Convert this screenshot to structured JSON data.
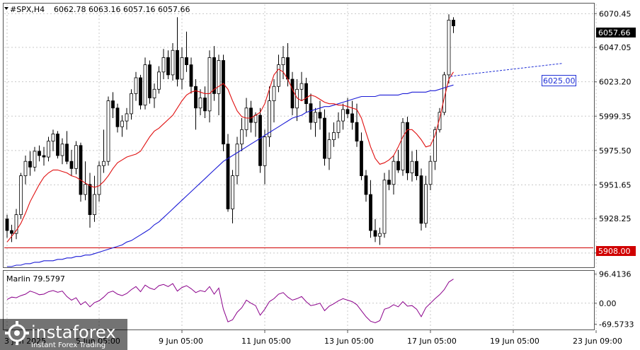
{
  "header": {
    "symbol_label": "#SPX,H4",
    "ohlc_text": "6062.78 6063.16 6057.16 6057.66"
  },
  "oscillator": {
    "label": "Marlin 79.5797",
    "ticks": [
      "96.4136",
      "0.00",
      "-69.5733"
    ],
    "range": [
      -85,
      105
    ],
    "tick_values": [
      96.4136,
      0,
      -69.5733
    ],
    "color": "#8b008b"
  },
  "price_labels": {
    "current": "6057.66",
    "support": "5908.00",
    "target": "6025.00"
  },
  "watermark": {
    "brand": "instaforex",
    "tagline": "Instant Forex Trading"
  },
  "colors": {
    "ma_fast": "#e01010",
    "ma_slow": "#1a1ad6",
    "support_line": "#d00000",
    "target_label": "#1f2fd6",
    "candle_bull": "#ffffff",
    "candle_bear": "#000000"
  },
  "chart_data": {
    "type": "candlestick",
    "y_ticks": [
      "6070.45",
      "6047.05",
      "6023.20",
      "5999.35",
      "5975.50",
      "5951.65",
      "5928.25",
      "5904.40"
    ],
    "y_tick_values": [
      6070.45,
      6047.05,
      6023.2,
      5999.35,
      5975.5,
      5951.65,
      5928.25,
      5904.4
    ],
    "ylim": [
      5895,
      6077
    ],
    "x_labels": [
      "3 Jun 2025",
      "5 Jun 05:00",
      "9 Jun 05:00",
      "11 Jun 05:00",
      "13 Jun 05:00",
      "17 Jun 05:00",
      "19 Jun 05:00",
      "23 Jun 09:00"
    ],
    "x_label_index": [
      0,
      20,
      38,
      56,
      74,
      92,
      110,
      128
    ],
    "horizontal_levels": [
      5908.0
    ],
    "projection_target": 6025.0,
    "candles": [
      [
        5928,
        5931,
        5915,
        5920
      ],
      [
        5920,
        5924,
        5912,
        5918
      ],
      [
        5918,
        5935,
        5914,
        5931
      ],
      [
        5931,
        5960,
        5928,
        5958
      ],
      [
        5958,
        5972,
        5952,
        5968
      ],
      [
        5968,
        5975,
        5958,
        5964
      ],
      [
        5964,
        5978,
        5961,
        5975
      ],
      [
        5975,
        5979,
        5968,
        5972
      ],
      [
        5972,
        5978,
        5965,
        5971
      ],
      [
        5971,
        5985,
        5968,
        5982
      ],
      [
        5982,
        5990,
        5975,
        5987
      ],
      [
        5987,
        5989,
        5970,
        5972
      ],
      [
        5972,
        5984,
        5966,
        5980
      ],
      [
        5980,
        5989,
        5966,
        5968
      ],
      [
        5968,
        5976,
        5958,
        5963
      ],
      [
        5963,
        5982,
        5959,
        5979
      ],
      [
        5979,
        5981,
        5940,
        5945
      ],
      [
        5945,
        5968,
        5941,
        5952
      ],
      [
        5952,
        5960,
        5922,
        5931
      ],
      [
        5931,
        5958,
        5926,
        5945
      ],
      [
        5945,
        5968,
        5940,
        5965
      ],
      [
        5965,
        5990,
        5960,
        5968
      ],
      [
        5968,
        6013,
        5965,
        6010
      ],
      [
        6010,
        6016,
        5998,
        6005
      ],
      [
        6005,
        6008,
        5988,
        5992
      ],
      [
        5992,
        6000,
        5985,
        5996
      ],
      [
        5996,
        6005,
        5990,
        6001
      ],
      [
        6001,
        6018,
        5997,
        6015
      ],
      [
        6015,
        6030,
        6010,
        6026
      ],
      [
        6026,
        6028,
        6004,
        6007
      ],
      [
        6007,
        6040,
        6004,
        6035
      ],
      [
        6035,
        6038,
        6008,
        6012
      ],
      [
        6012,
        6022,
        6005,
        6018
      ],
      [
        6018,
        6034,
        6015,
        6030
      ],
      [
        6030,
        6046,
        6025,
        6040
      ],
      [
        6040,
        6045,
        6025,
        6028
      ],
      [
        6028,
        6050,
        6024,
        6045
      ],
      [
        6045,
        6068,
        6020,
        6025
      ],
      [
        6025,
        6047,
        6018,
        6040
      ],
      [
        6040,
        6058,
        6030,
        6035
      ],
      [
        6035,
        6040,
        6015,
        6020
      ],
      [
        6020,
        6025,
        5990,
        6005
      ],
      [
        6005,
        6018,
        6000,
        6012
      ],
      [
        6012,
        6020,
        5998,
        6003
      ],
      [
        6003,
        6045,
        5995,
        6040
      ],
      [
        6040,
        6048,
        6010,
        6015
      ],
      [
        6015,
        6042,
        6000,
        6038
      ],
      [
        6038,
        6042,
        5975,
        5980
      ],
      [
        5980,
        5987,
        5933,
        5935
      ],
      [
        5935,
        5962,
        5925,
        5958
      ],
      [
        5958,
        5985,
        5952,
        5980
      ],
      [
        5980,
        5998,
        5975,
        5990
      ],
      [
        5990,
        6012,
        5985,
        6005
      ],
      [
        6005,
        6010,
        5988,
        5995
      ],
      [
        5995,
        6002,
        5985,
        6000
      ],
      [
        6000,
        6005,
        5960,
        5965
      ],
      [
        5965,
        5990,
        5952,
        5985
      ],
      [
        5985,
        6020,
        5978,
        6010
      ],
      [
        6010,
        6025,
        5995,
        6020
      ],
      [
        6020,
        6042,
        6016,
        6035
      ],
      [
        6035,
        6048,
        6025,
        6040
      ],
      [
        6040,
        6050,
        6020,
        6025
      ],
      [
        6025,
        6030,
        6000,
        6005
      ],
      [
        6005,
        6025,
        5996,
        6018
      ],
      [
        6018,
        6030,
        6010,
        6022
      ],
      [
        6022,
        6026,
        6002,
        6008
      ],
      [
        6008,
        6015,
        5990,
        5995
      ],
      [
        5995,
        6005,
        5985,
        6002
      ],
      [
        6002,
        6010,
        5990,
        5998
      ],
      [
        5998,
        6004,
        5965,
        5970
      ],
      [
        5970,
        5988,
        5962,
        5983
      ],
      [
        5983,
        5995,
        5978,
        5988
      ],
      [
        5988,
        6002,
        5984,
        5996
      ],
      [
        5996,
        6008,
        5990,
        6004
      ],
      [
        6004,
        6012,
        5998,
        6001
      ],
      [
        6001,
        6010,
        5990,
        5995
      ],
      [
        5995,
        6008,
        5978,
        5982
      ],
      [
        5982,
        5988,
        5955,
        5958
      ],
      [
        5958,
        5962,
        5940,
        5945
      ],
      [
        5945,
        5955,
        5915,
        5920
      ],
      [
        5920,
        5928,
        5912,
        5916
      ],
      [
        5916,
        5922,
        5910,
        5918
      ],
      [
        5918,
        5960,
        5915,
        5955
      ],
      [
        5955,
        5962,
        5948,
        5952
      ],
      [
        5952,
        5972,
        5945,
        5968
      ],
      [
        5968,
        5976,
        5960,
        5962
      ],
      [
        5962,
        5998,
        5958,
        5995
      ],
      [
        5995,
        5999,
        5955,
        5960
      ],
      [
        5960,
        5975,
        5954,
        5968
      ],
      [
        5968,
        5976,
        5955,
        5958
      ],
      [
        5958,
        5963,
        5920,
        5925
      ],
      [
        5925,
        5958,
        5922,
        5952
      ],
      [
        5952,
        5972,
        5948,
        5968
      ],
      [
        5968,
        5992,
        5962,
        5990
      ],
      [
        5990,
        6005,
        5988,
        6002
      ],
      [
        6002,
        6030,
        6000,
        6028
      ],
      [
        6028,
        6070,
        6022,
        6066
      ],
      [
        6066,
        6068,
        6057,
        6062
      ]
    ],
    "ma_fast_values": [
      5912,
      5916,
      5920,
      5925,
      5932,
      5940,
      5946,
      5952,
      5957,
      5960,
      5962,
      5962,
      5961,
      5960,
      5958,
      5957,
      5955,
      5953,
      5951,
      5950,
      5951,
      5954,
      5958,
      5963,
      5967,
      5969,
      5971,
      5972,
      5973,
      5975,
      5980,
      5985,
      5989,
      5991,
      5994,
      5997,
      6000,
      6005,
      6010,
      6014,
      6016,
      6017,
      6016,
      6015,
      6015,
      6018,
      6020,
      6022,
      6018,
      6010,
      6003,
      5999,
      5998,
      5998,
      6000,
      6002,
      6008,
      6018,
      6028,
      6032,
      6030,
      6025,
      6018,
      6012,
      6010,
      6012,
      6014,
      6013,
      6011,
      6009,
      6008,
      6008,
      6007,
      6007,
      6006,
      6005,
      6004,
      5998,
      5988,
      5978,
      5970,
      5966,
      5967,
      5969,
      5972,
      5978,
      5985,
      5990,
      5990,
      5987,
      5983,
      5978,
      5979,
      5986,
      5998,
      6012,
      6025,
      6030
    ],
    "ma_slow_values": [
      5895,
      5895,
      5896,
      5896,
      5897,
      5897,
      5898,
      5898,
      5899,
      5899,
      5899,
      5900,
      5900,
      5901,
      5901,
      5902,
      5902,
      5903,
      5903,
      5904,
      5905,
      5906,
      5907,
      5908,
      5909,
      5910,
      5912,
      5913,
      5915,
      5917,
      5919,
      5921,
      5924,
      5926,
      5929,
      5932,
      5935,
      5938,
      5941,
      5944,
      5947,
      5950,
      5953,
      5956,
      5959,
      5962,
      5965,
      5968,
      5970,
      5972,
      5974,
      5976,
      5978,
      5980,
      5982,
      5984,
      5986,
      5988,
      5990,
      5992,
      5994,
      5996,
      5998,
      5999,
      6000,
      6002,
      6003,
      6004,
      6005,
      6006,
      6006,
      6007,
      6008,
      6009,
      6010,
      6011,
      6012,
      6013,
      6013,
      6013,
      6013,
      6014,
      6014,
      6014,
      6014,
      6014,
      6015,
      6015,
      6016,
      6016,
      6016,
      6016,
      6017,
      6017,
      6018,
      6019,
      6020,
      6021
    ],
    "oscillator_values": [
      12,
      20,
      18,
      25,
      30,
      40,
      35,
      28,
      30,
      38,
      42,
      36,
      40,
      22,
      10,
      18,
      -5,
      5,
      -12,
      2,
      8,
      20,
      35,
      40,
      30,
      25,
      32,
      45,
      55,
      38,
      60,
      50,
      45,
      58,
      62,
      55,
      65,
      40,
      52,
      58,
      48,
      35,
      42,
      38,
      55,
      30,
      50,
      -20,
      -62,
      -55,
      -30,
      -15,
      10,
      0,
      -8,
      -40,
      -20,
      5,
      15,
      30,
      35,
      20,
      10,
      15,
      22,
      5,
      -8,
      -5,
      0,
      -25,
      -10,
      -2,
      8,
      15,
      10,
      5,
      -5,
      -25,
      -45,
      -60,
      -65,
      -58,
      -20,
      -15,
      -5,
      -12,
      5,
      -10,
      -8,
      -20,
      -45,
      -15,
      0,
      15,
      28,
      45,
      70,
      80
    ]
  }
}
